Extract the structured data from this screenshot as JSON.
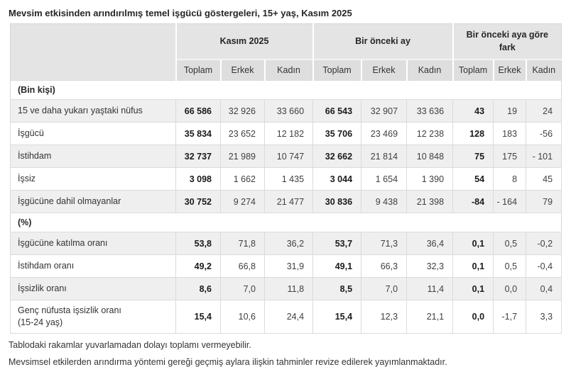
{
  "title": "Mevsim etkisinden arındırılmış temel işgücü göstergeleri, 15+ yaş, Kasım 2025",
  "table": {
    "group_headers": [
      "Kasım 2025",
      "Bir önceki ay",
      "Bir önceki aya göre fark"
    ],
    "sub_headers": [
      "Toplam",
      "Erkek",
      "Kadın",
      "Toplam",
      "Erkek",
      "Kadın",
      "Toplam",
      "Erkek",
      "Kadın"
    ],
    "sections": [
      {
        "header": "(Bin kişi)",
        "rows": [
          {
            "label": "15 ve daha yukarı yaştaki nüfus",
            "values": [
              "66 586",
              "32 926",
              "33 660",
              "66 543",
              "32 907",
              "33 636",
              "43",
              "19",
              "24"
            ]
          },
          {
            "label": "İşgücü",
            "values": [
              "35 834",
              "23 652",
              "12 182",
              "35 706",
              "23 469",
              "12 238",
              "128",
              "183",
              "-56"
            ]
          },
          {
            "label": "İstihdam",
            "values": [
              "32 737",
              "21 989",
              "10 747",
              "32 662",
              "21 814",
              "10 848",
              "75",
              "175",
              "- 101"
            ]
          },
          {
            "label": "İşsiz",
            "values": [
              "3 098",
              "1 662",
              "1 435",
              "3 044",
              "1 654",
              "1 390",
              "54",
              "8",
              "45"
            ]
          },
          {
            "label": "İşgücüne dahil olmayanlar",
            "values": [
              "30 752",
              "9 274",
              "21 477",
              "30 836",
              "9 438",
              "21 398",
              "-84",
              "- 164",
              "79"
            ]
          }
        ]
      },
      {
        "header": "(%)",
        "rows": [
          {
            "label": "İşgücüne katılma oranı",
            "values": [
              "53,8",
              "71,8",
              "36,2",
              "53,7",
              "71,3",
              "36,4",
              "0,1",
              "0,5",
              "-0,2"
            ]
          },
          {
            "label": "İstihdam oranı",
            "values": [
              "49,2",
              "66,8",
              "31,9",
              "49,1",
              "66,3",
              "32,3",
              "0,1",
              "0,5",
              "-0,4"
            ]
          },
          {
            "label": "İşsizlik oranı",
            "values": [
              "8,6",
              "7,0",
              "11,8",
              "8,5",
              "7,0",
              "11,4",
              "0,1",
              "0,0",
              "0,4"
            ]
          },
          {
            "label": "Genç nüfusta işsizlik oranı",
            "label_line2": "(15-24 yaş)",
            "values": [
              "15,4",
              "10,6",
              "24,4",
              "15,4",
              "12,3",
              "21,1",
              "0,0",
              "-1,7",
              "3,3"
            ]
          }
        ]
      }
    ]
  },
  "footnotes": [
    "Tablodaki rakamlar yuvarlamadan dolayı toplamı vermeyebilir.",
    "Mevsimsel etkilerden arındırma yöntemi gereği geçmiş aylara ilişkin tahminler revize edilerek yayımlanmaktadır."
  ],
  "colors": {
    "header_bg": "#e4e4e4",
    "subheader_bg": "#dedede",
    "stripe_bg": "#efefef",
    "border": "#dbdbdb",
    "bold_text": "#1a1a1a",
    "regular_text": "#404040"
  }
}
